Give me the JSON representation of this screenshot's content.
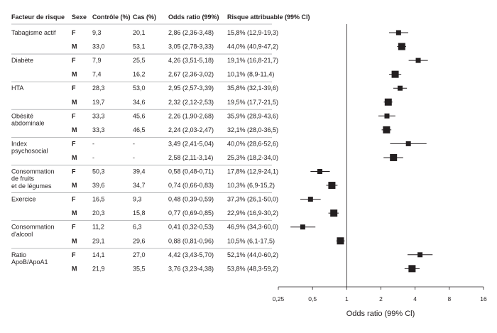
{
  "chart_data": {
    "type": "forest",
    "headers": {
      "factor": "Facteur de risque",
      "sex": "Sexe",
      "control": "Contrôle (%)",
      "cases": "Cas (%)",
      "or": "Odds ratio (99%)",
      "par": "Risque attribuable (99% Cl)"
    },
    "xaxis": {
      "label": "Odds ratio (99% Cl)",
      "scale": "log2",
      "ticks": [
        0.25,
        0.5,
        1,
        2,
        4,
        8,
        16
      ],
      "tick_labels": [
        "0,25",
        "0,5",
        "1",
        "2",
        "4",
        "8",
        "16"
      ],
      "reference_line": 1
    },
    "groups": [
      {
        "label": [
          "Tabagisme actif"
        ],
        "rows": [
          {
            "sex": "F",
            "control": "9,3",
            "cases": "20,1",
            "or_text": "2,86 (2,36-3,48)",
            "par_text": "15,8% (12,9-19,3)",
            "or": 2.86,
            "lo": 2.36,
            "hi": 3.48
          },
          {
            "sex": "M",
            "control": "33,0",
            "cases": "53,1",
            "or_text": "3,05 (2,78-3,33)",
            "par_text": "44,0% (40,9-47,2)",
            "or": 3.05,
            "lo": 2.78,
            "hi": 3.33
          }
        ]
      },
      {
        "label": [
          "Diabète"
        ],
        "rows": [
          {
            "sex": "F",
            "control": "7,9",
            "cases": "25,5",
            "or_text": "4,26 (3,51-5,18)",
            "par_text": "19,1% (16,8-21,7)",
            "or": 4.26,
            "lo": 3.51,
            "hi": 5.18
          },
          {
            "sex": "M",
            "control": "7,4",
            "cases": "16,2",
            "or_text": "2,67 (2,36-3,02)",
            "par_text": "10,1% (8,9-11,4)",
            "or": 2.67,
            "lo": 2.36,
            "hi": 3.02
          }
        ]
      },
      {
        "label": [
          "HTA"
        ],
        "rows": [
          {
            "sex": "F",
            "control": "28,3",
            "cases": "53,0",
            "or_text": "2,95 (2,57-3,39)",
            "par_text": "35,8% (32,1-39,6)",
            "or": 2.95,
            "lo": 2.57,
            "hi": 3.39
          },
          {
            "sex": "M",
            "control": "19,7",
            "cases": "34,6",
            "or_text": "2,32 (2,12-2,53)",
            "par_text": "19,5% (17,7-21,5)",
            "or": 2.32,
            "lo": 2.12,
            "hi": 2.53
          }
        ]
      },
      {
        "label": [
          "Obésité",
          "abdominale"
        ],
        "rows": [
          {
            "sex": "F",
            "control": "33,3",
            "cases": "45,6",
            "or_text": "2,26 (1,90-2,68)",
            "par_text": "35,9% (28,9-43,6)",
            "or": 2.26,
            "lo": 1.9,
            "hi": 2.68
          },
          {
            "sex": "M",
            "control": "33,3",
            "cases": "46,5",
            "or_text": "2,24 (2,03-2,47)",
            "par_text": "32,1% (28,0-36,5)",
            "or": 2.24,
            "lo": 2.03,
            "hi": 2.47
          }
        ]
      },
      {
        "label": [
          "Index",
          "psychosocial"
        ],
        "rows": [
          {
            "sex": "F",
            "control": "-",
            "cases": "-",
            "or_text": "3,49 (2,41-5,04)",
            "par_text": "40,0% (28,6-52,6)",
            "or": 3.49,
            "lo": 2.41,
            "hi": 5.04
          },
          {
            "sex": "M",
            "control": "-",
            "cases": "-",
            "or_text": "2,58 (2,11-3,14)",
            "par_text": "25,3% (18,2-34,0)",
            "or": 2.58,
            "lo": 2.11,
            "hi": 3.14
          }
        ]
      },
      {
        "label": [
          "Consommation",
          "de fruits",
          "et de légumes"
        ],
        "rows": [
          {
            "sex": "F",
            "control": "50,3",
            "cases": "39,4",
            "or_text": "0,58 (0,48-0,71)",
            "par_text": "17,8% (12,9-24,1)",
            "or": 0.58,
            "lo": 0.48,
            "hi": 0.71
          },
          {
            "sex": "M",
            "control": "39,6",
            "cases": "34,7",
            "or_text": "0,74 (0,66-0,83)",
            "par_text": "10,3% (6,9-15,2)",
            "or": 0.74,
            "lo": 0.66,
            "hi": 0.83
          }
        ]
      },
      {
        "label": [
          "Exercice"
        ],
        "rows": [
          {
            "sex": "F",
            "control": "16,5",
            "cases": "9,3",
            "or_text": "0,48 (0,39-0,59)",
            "par_text": "37,3% (26,1-50,0)",
            "or": 0.48,
            "lo": 0.39,
            "hi": 0.59
          },
          {
            "sex": "M",
            "control": "20,3",
            "cases": "15,8",
            "or_text": "0,77 (0,69-0,85)",
            "par_text": "22,9% (16,9-30,2)",
            "or": 0.77,
            "lo": 0.69,
            "hi": 0.85
          }
        ]
      },
      {
        "label": [
          "Consommation",
          "d'alcool"
        ],
        "rows": [
          {
            "sex": "F",
            "control": "11,2",
            "cases": "6,3",
            "or_text": "0,41 (0,32-0,53)",
            "par_text": "46,9% (34,3-60,0)",
            "or": 0.41,
            "lo": 0.32,
            "hi": 0.53
          },
          {
            "sex": "M",
            "control": "29,1",
            "cases": "29,6",
            "or_text": "0,88 (0,81-0,96)",
            "par_text": "10,5% (6,1-17,5)",
            "or": 0.88,
            "lo": 0.81,
            "hi": 0.96
          }
        ]
      },
      {
        "label": [
          "Ratio",
          "ApoB/ApoA1"
        ],
        "rows": [
          {
            "sex": "F",
            "control": "14,1",
            "cases": "27,0",
            "or_text": "4,42 (3,43-5,70)",
            "par_text": "52,1% (44,0-60,2)",
            "or": 4.42,
            "lo": 3.43,
            "hi": 5.7
          },
          {
            "sex": "M",
            "control": "21,9",
            "cases": "35,5",
            "or_text": "3,76 (3,23-4,38)",
            "par_text": "53,8% (48,3-59,2)",
            "or": 3.76,
            "lo": 3.23,
            "hi": 4.38
          }
        ]
      }
    ]
  }
}
